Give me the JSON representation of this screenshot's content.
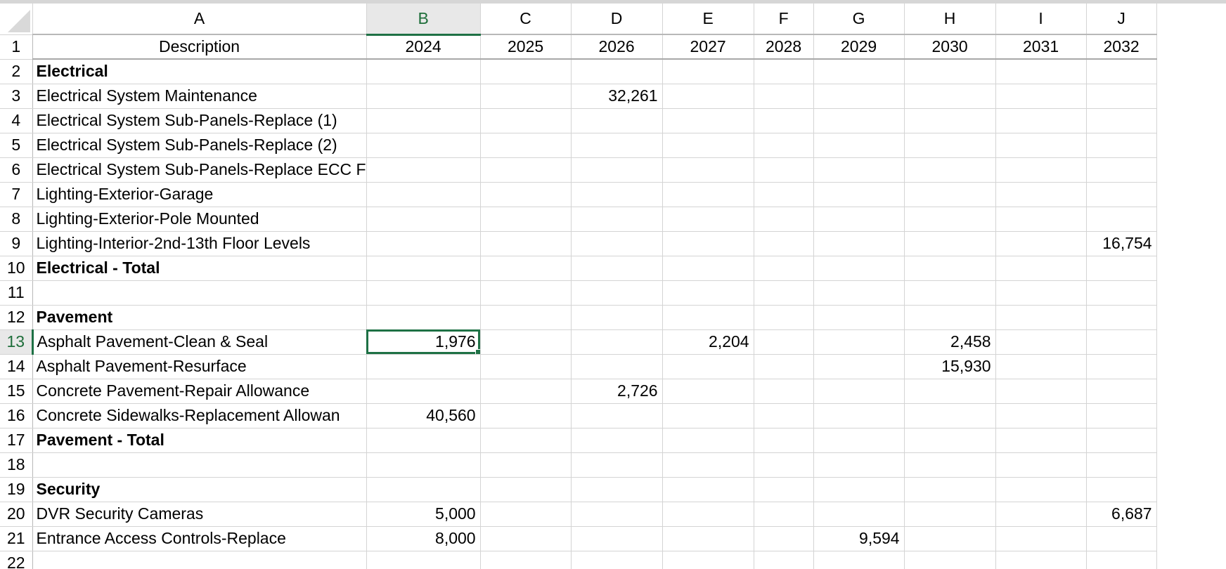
{
  "columns": [
    "A",
    "B",
    "C",
    "D",
    "E",
    "F",
    "G",
    "H",
    "I",
    "J"
  ],
  "active_column": "B",
  "active_row": 13,
  "selected_cell": "B13",
  "rows": [
    {
      "n": 1,
      "kind": "header",
      "cells": [
        "Description",
        "2024",
        "2025",
        "2026",
        "2027",
        "2028",
        "2029",
        "2030",
        "2031",
        "2032"
      ]
    },
    {
      "n": 2,
      "kind": "section",
      "cells": [
        "Electrical",
        "",
        "",
        "",
        "",
        "",
        "",
        "",
        "",
        ""
      ]
    },
    {
      "n": 3,
      "kind": "item",
      "cells": [
        "Electrical System Maintenance",
        "",
        "",
        "32,261",
        "",
        "",
        "",
        "",
        "",
        ""
      ]
    },
    {
      "n": 4,
      "kind": "item",
      "cells": [
        "Electrical System Sub-Panels-Replace (1)",
        "",
        "",
        "",
        "",
        "",
        "",
        "",
        "",
        ""
      ]
    },
    {
      "n": 5,
      "kind": "item",
      "cells": [
        "Electrical System Sub-Panels-Replace (2)",
        "",
        "",
        "",
        "",
        "",
        "",
        "",
        "",
        ""
      ]
    },
    {
      "n": 6,
      "kind": "item",
      "cells": [
        "Electrical System Sub-Panels-Replace ECC F",
        "",
        "",
        "",
        "",
        "",
        "",
        "",
        "",
        ""
      ]
    },
    {
      "n": 7,
      "kind": "item",
      "cells": [
        "Lighting-Exterior-Garage",
        "",
        "",
        "",
        "",
        "",
        "",
        "",
        "",
        ""
      ]
    },
    {
      "n": 8,
      "kind": "item",
      "cells": [
        "Lighting-Exterior-Pole Mounted",
        "",
        "",
        "",
        "",
        "",
        "",
        "",
        "",
        ""
      ]
    },
    {
      "n": 9,
      "kind": "item",
      "cells": [
        "Lighting-Interior-2nd-13th Floor Levels",
        "",
        "",
        "",
        "",
        "",
        "",
        "",
        "",
        "16,754"
      ]
    },
    {
      "n": 10,
      "kind": "section",
      "cells": [
        "Electrical - Total",
        "",
        "",
        "",
        "",
        "",
        "",
        "",
        "",
        ""
      ]
    },
    {
      "n": 11,
      "kind": "item",
      "cells": [
        "",
        "",
        "",
        "",
        "",
        "",
        "",
        "",
        "",
        ""
      ]
    },
    {
      "n": 12,
      "kind": "section",
      "cells": [
        "Pavement",
        "",
        "",
        "",
        "",
        "",
        "",
        "",
        "",
        ""
      ]
    },
    {
      "n": 13,
      "kind": "item",
      "cells": [
        "Asphalt Pavement-Clean & Seal",
        "1,976",
        "",
        "",
        "2,204",
        "",
        "",
        "2,458",
        "",
        ""
      ]
    },
    {
      "n": 14,
      "kind": "item",
      "cells": [
        "Asphalt Pavement-Resurface",
        "",
        "",
        "",
        "",
        "",
        "",
        "15,930",
        "",
        ""
      ]
    },
    {
      "n": 15,
      "kind": "item",
      "cells": [
        "Concrete Pavement-Repair Allowance",
        "",
        "",
        "2,726",
        "",
        "",
        "",
        "",
        "",
        ""
      ]
    },
    {
      "n": 16,
      "kind": "item",
      "cells": [
        "Concrete Sidewalks-Replacement Allowan",
        "40,560",
        "",
        "",
        "",
        "",
        "",
        "",
        "",
        ""
      ]
    },
    {
      "n": 17,
      "kind": "section",
      "cells": [
        "Pavement - Total",
        "",
        "",
        "",
        "",
        "",
        "",
        "",
        "",
        ""
      ]
    },
    {
      "n": 18,
      "kind": "item",
      "cells": [
        "",
        "",
        "",
        "",
        "",
        "",
        "",
        "",
        "",
        ""
      ]
    },
    {
      "n": 19,
      "kind": "section",
      "cells": [
        "Security",
        "",
        "",
        "",
        "",
        "",
        "",
        "",
        "",
        ""
      ]
    },
    {
      "n": 20,
      "kind": "item",
      "cells": [
        "DVR Security Cameras",
        "5,000",
        "",
        "",
        "",
        "",
        "",
        "",
        "",
        "6,687"
      ]
    },
    {
      "n": 21,
      "kind": "item",
      "cells": [
        "Entrance Access Controls-Replace",
        "8,000",
        "",
        "",
        "",
        "",
        "9,594",
        "",
        "",
        ""
      ]
    },
    {
      "n": 22,
      "kind": "item",
      "cells": [
        "",
        "",
        "",
        "",
        "",
        "",
        "",
        "",
        "",
        ""
      ]
    }
  ]
}
